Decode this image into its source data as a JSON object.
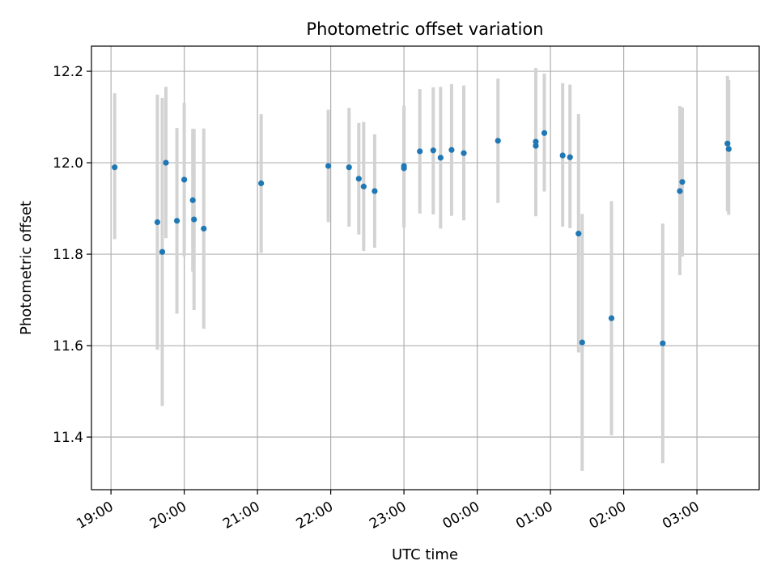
{
  "chart_data": {
    "type": "scatter",
    "title": "Photometric offset variation",
    "xlabel": "UTC time",
    "ylabel": "Photometric offset",
    "x_axis": "time (UTC)",
    "xlim": [
      "18:44",
      "03:51"
    ],
    "ylim": [
      11.285,
      12.255
    ],
    "xticks": [
      "19:00",
      "20:00",
      "21:00",
      "22:00",
      "23:00",
      "00:00",
      "01:00",
      "02:00",
      "03:00"
    ],
    "yticks": [
      11.4,
      11.6,
      11.8,
      12.0,
      12.2
    ],
    "grid": true,
    "point_color": "#1f77b4",
    "errorbar_color": "#d3d3d3",
    "points": [
      {
        "x": "19:03",
        "y": 11.99,
        "lo": 11.833,
        "hi": 12.152
      },
      {
        "x": "19:38",
        "y": 11.87,
        "lo": 11.591,
        "hi": 12.149
      },
      {
        "x": "19:42",
        "y": 11.805,
        "lo": 11.468,
        "hi": 12.142
      },
      {
        "x": "19:45",
        "y": 12.0,
        "lo": 11.835,
        "hi": 12.166
      },
      {
        "x": "19:54",
        "y": 11.873,
        "lo": 11.67,
        "hi": 12.076
      },
      {
        "x": "20:00",
        "y": 11.963,
        "lo": 11.795,
        "hi": 12.131
      },
      {
        "x": "20:07",
        "y": 11.918,
        "lo": 11.762,
        "hi": 12.074
      },
      {
        "x": "20:08",
        "y": 11.876,
        "lo": 11.678,
        "hi": 12.074
      },
      {
        "x": "20:16",
        "y": 11.856,
        "lo": 11.637,
        "hi": 12.075
      },
      {
        "x": "21:03",
        "y": 11.955,
        "lo": 11.803,
        "hi": 12.106
      },
      {
        "x": "21:58",
        "y": 11.993,
        "lo": 11.87,
        "hi": 12.116
      },
      {
        "x": "22:15",
        "y": 11.99,
        "lo": 11.86,
        "hi": 12.12
      },
      {
        "x": "22:23",
        "y": 11.965,
        "lo": 11.843,
        "hi": 12.087
      },
      {
        "x": "22:27",
        "y": 11.948,
        "lo": 11.807,
        "hi": 12.089
      },
      {
        "x": "22:36",
        "y": 11.938,
        "lo": 11.814,
        "hi": 12.062
      },
      {
        "x": "23:00",
        "y": 11.988,
        "lo": 11.858,
        "hi": 12.118
      },
      {
        "x": "23:00",
        "y": 11.993,
        "lo": 11.861,
        "hi": 12.125
      },
      {
        "x": "23:13",
        "y": 12.025,
        "lo": 11.889,
        "hi": 12.161
      },
      {
        "x": "23:24",
        "y": 12.027,
        "lo": 11.887,
        "hi": 12.165
      },
      {
        "x": "23:30",
        "y": 12.011,
        "lo": 11.856,
        "hi": 12.166
      },
      {
        "x": "23:39",
        "y": 12.028,
        "lo": 11.884,
        "hi": 12.172
      },
      {
        "x": "23:49",
        "y": 12.021,
        "lo": 11.874,
        "hi": 12.169
      },
      {
        "x": "00:17",
        "y": 12.048,
        "lo": 11.912,
        "hi": 12.184
      },
      {
        "x": "00:48",
        "y": 12.037,
        "lo": 11.883,
        "hi": 12.207
      },
      {
        "x": "00:48",
        "y": 12.046,
        "lo": 11.883,
        "hi": 12.207
      },
      {
        "x": "00:55",
        "y": 12.065,
        "lo": 11.937,
        "hi": 12.195
      },
      {
        "x": "01:10",
        "y": 12.016,
        "lo": 11.86,
        "hi": 12.174
      },
      {
        "x": "01:16",
        "y": 12.012,
        "lo": 11.857,
        "hi": 12.171
      },
      {
        "x": "01:23",
        "y": 11.845,
        "lo": 11.585,
        "hi": 12.106
      },
      {
        "x": "01:26",
        "y": 11.607,
        "lo": 11.326,
        "hi": 11.888
      },
      {
        "x": "01:50",
        "y": 11.66,
        "lo": 11.404,
        "hi": 11.916
      },
      {
        "x": "02:32",
        "y": 11.605,
        "lo": 11.343,
        "hi": 11.867
      },
      {
        "x": "02:46",
        "y": 11.938,
        "lo": 11.754,
        "hi": 12.124
      },
      {
        "x": "02:48",
        "y": 11.958,
        "lo": 11.795,
        "hi": 12.121
      },
      {
        "x": "03:25",
        "y": 12.042,
        "lo": 11.894,
        "hi": 12.19
      },
      {
        "x": "03:26",
        "y": 12.03,
        "lo": 11.886,
        "hi": 12.181
      }
    ]
  }
}
